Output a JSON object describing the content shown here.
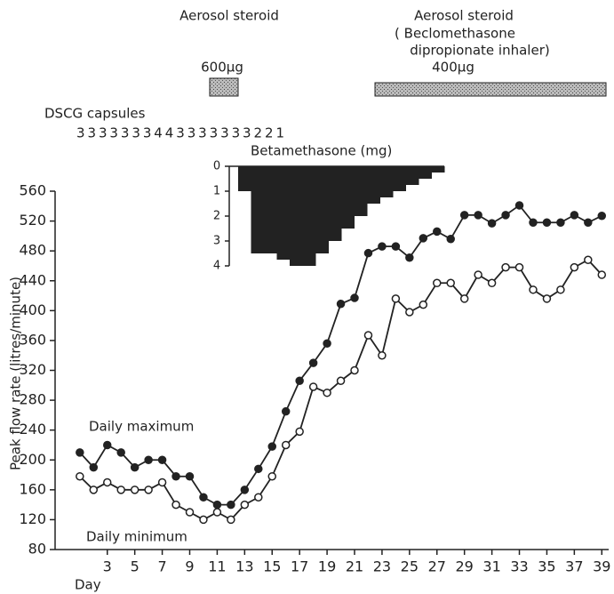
{
  "chart_data": {
    "type": "line",
    "y_label": "Peak flow rate (litres/minute)",
    "x_label": "Day",
    "xlim": [
      -0.8,
      39.5
    ],
    "xticks": [
      3,
      5,
      7,
      9,
      11,
      13,
      15,
      17,
      19,
      21,
      23,
      25,
      27,
      29,
      31,
      33,
      35,
      37,
      39
    ],
    "ylim": [
      80,
      560
    ],
    "yticks": [
      80,
      120,
      160,
      200,
      240,
      280,
      320,
      360,
      400,
      440,
      480,
      520,
      560
    ],
    "x": [
      1,
      2,
      3,
      4,
      5,
      6,
      7,
      8,
      9,
      10,
      11,
      12,
      13,
      14,
      15,
      16,
      17,
      18,
      19,
      20,
      21,
      22,
      23,
      24,
      25,
      26,
      27,
      28,
      29,
      30,
      31,
      32,
      33,
      34,
      35,
      36,
      37,
      38,
      39
    ],
    "series": [
      {
        "name": "Daily maximum",
        "color": "#222222",
        "marker": "filled",
        "values": [
          210,
          190,
          220,
          210,
          190,
          200,
          200,
          178,
          178,
          150,
          140,
          140,
          160,
          188,
          218,
          265,
          306,
          330,
          356,
          409,
          417,
          477,
          486,
          486,
          471,
          497,
          506,
          496,
          528,
          528,
          517,
          528,
          541,
          518,
          518,
          518,
          528,
          518,
          527
        ]
      },
      {
        "name": "Daily minimum",
        "color": "#222222",
        "marker": "open",
        "values": [
          178,
          160,
          170,
          160,
          160,
          160,
          170,
          140,
          130,
          120,
          130,
          120,
          140,
          150,
          178,
          220,
          238,
          298,
          290,
          306,
          320,
          367,
          340,
          416,
          398,
          408,
          437,
          437,
          416,
          448,
          437,
          458,
          458,
          428,
          416,
          428,
          458,
          468,
          448
        ]
      }
    ],
    "annotations": {
      "aerosol_1": {
        "label": "Aerosol steroid",
        "dose": "600µg"
      },
      "aerosol_2": {
        "label": "Aerosol steroid",
        "detail_1": "( Beclomethasone",
        "detail_2": "dipropionate inhaler)",
        "dose": "400µg"
      },
      "dscg": {
        "label": "DSCG capsules",
        "counts": "3 3 3 3 3 3 3 4 4 3 3 3 3 3 3 3 2 2 1"
      }
    },
    "inset": {
      "type": "bar",
      "title": "Betamethasone (mg)",
      "ylim": [
        0,
        4
      ],
      "yticks": [
        0,
        1,
        2,
        3,
        4
      ],
      "color": "#222222",
      "values": [
        1,
        3.5,
        3.5,
        3.75,
        4,
        4,
        3.5,
        3,
        2.5,
        2,
        1.5,
        1.25,
        1,
        0.75,
        0.5,
        0.25
      ]
    }
  }
}
